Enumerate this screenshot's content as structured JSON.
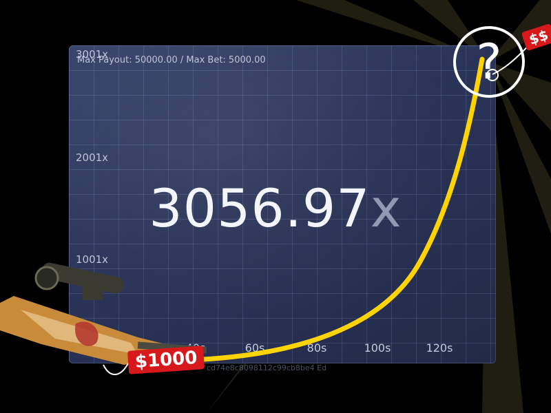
{
  "header": {
    "max_info": "Max Payout: 50000.00 / Max Bet: 5000.00"
  },
  "y_axis": {
    "labels": [
      "3001x",
      "2001x",
      "1001x"
    ]
  },
  "x_axis": {
    "labels": [
      "40s",
      "60s",
      "80s",
      "100s",
      "120s"
    ]
  },
  "multiplier": {
    "value": "3056.97",
    "suffix": "x"
  },
  "footer": {
    "hash_fragment": "cd74e8c8098112c99cb8be4 Ed"
  },
  "tags": {
    "low_price": "$1000",
    "high_price": "$$"
  },
  "mystery": {
    "glyph": "?"
  },
  "colors": {
    "curve": "#ffd400",
    "tag": "#d7191c",
    "board": "#2a3458"
  }
}
